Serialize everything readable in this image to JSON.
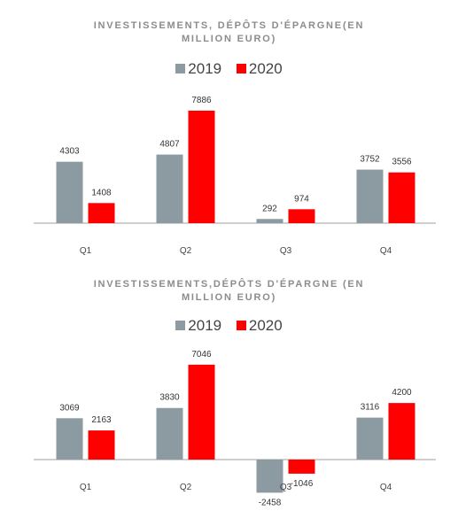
{
  "chart_data": [
    {
      "type": "bar",
      "title_lines": [
        "INVESTISSEMENTS,  DÉPÔTS D'ÉPARGNE(EN",
        "MILLION EURO)"
      ],
      "categories": [
        "Q1",
        "Q2",
        "Q3",
        "Q4"
      ],
      "series": [
        {
          "name": "2019",
          "color": "#8c9aa1",
          "values": [
            4303,
            4807,
            292,
            3752
          ]
        },
        {
          "name": "2020",
          "color": "#ff0000",
          "values": [
            1408,
            7886,
            974,
            3556
          ]
        }
      ],
      "ylim": [
        0,
        8500
      ],
      "grid": false,
      "legend": "top"
    },
    {
      "type": "bar",
      "title_lines": [
        "INVESTISSEMENTS,DÉPÔTS  D'ÉPARGNE (EN",
        "MILLION EURO)"
      ],
      "categories": [
        "Q1",
        "Q2",
        "Q3",
        "Q4"
      ],
      "series": [
        {
          "name": "2019",
          "color": "#8c9aa1",
          "values": [
            3069,
            3830,
            -2458,
            3116
          ]
        },
        {
          "name": "2020",
          "color": "#ff0000",
          "values": [
            2163,
            7046,
            -1046,
            4200
          ]
        }
      ],
      "ylim": [
        -2500,
        7700
      ],
      "grid": false,
      "legend": "top"
    }
  ]
}
